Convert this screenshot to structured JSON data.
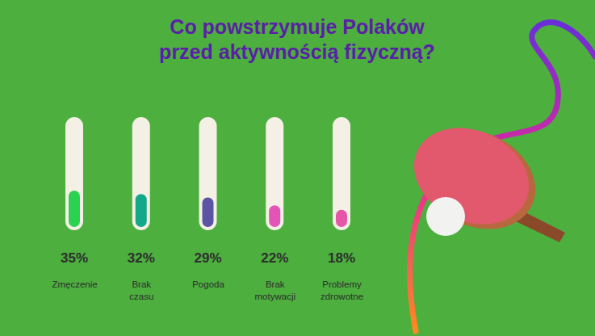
{
  "chart_data": {
    "type": "bar",
    "title": "Co powstrzymuje Polaków przed aktywnością fizyczną?",
    "categories": [
      "Zmęczenie",
      "Brak czasu",
      "Pogoda",
      "Brak motywacji",
      "Problemy zdrowotne"
    ],
    "values": [
      35,
      32,
      29,
      22,
      18
    ],
    "value_labels": [
      "35%",
      "32%",
      "29%",
      "22%",
      "18%"
    ],
    "colors": [
      "#2ad34f",
      "#14a88a",
      "#5b55a3",
      "#e255b4",
      "#e556a6"
    ],
    "ylim": [
      0,
      100
    ],
    "data_labels": true,
    "tick_labels": false
  }
}
